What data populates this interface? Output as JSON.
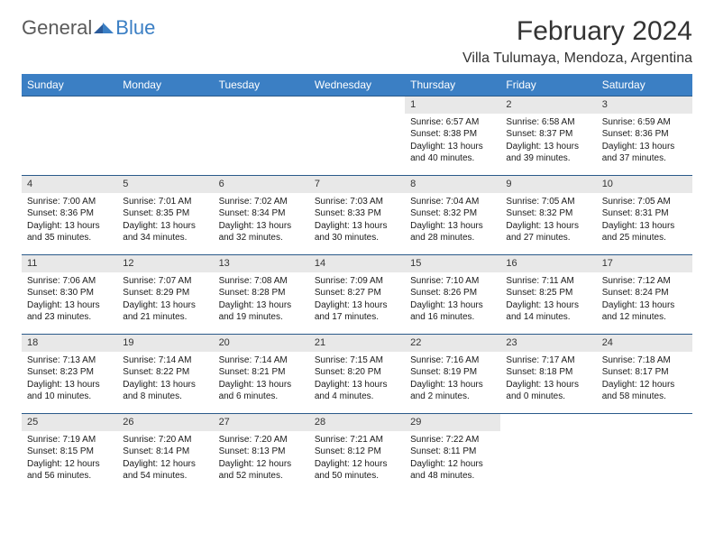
{
  "logo": {
    "general": "General",
    "blue": "Blue"
  },
  "title": "February 2024",
  "location": "Villa Tulumaya, Mendoza, Argentina",
  "colors": {
    "header_bg": "#3b7fc4",
    "header_text": "#ffffff",
    "daynum_bg": "#e8e8e8",
    "divider": "#2a5a8a",
    "logo_gray": "#5a5a5a",
    "logo_blue": "#3b7fc4",
    "body_text": "#1a1a1a"
  },
  "weekdays": [
    "Sunday",
    "Monday",
    "Tuesday",
    "Wednesday",
    "Thursday",
    "Friday",
    "Saturday"
  ],
  "weeks": [
    [
      null,
      null,
      null,
      null,
      {
        "n": "1",
        "sr": "6:57 AM",
        "ss": "8:38 PM",
        "dl": "13 hours and 40 minutes."
      },
      {
        "n": "2",
        "sr": "6:58 AM",
        "ss": "8:37 PM",
        "dl": "13 hours and 39 minutes."
      },
      {
        "n": "3",
        "sr": "6:59 AM",
        "ss": "8:36 PM",
        "dl": "13 hours and 37 minutes."
      }
    ],
    [
      {
        "n": "4",
        "sr": "7:00 AM",
        "ss": "8:36 PM",
        "dl": "13 hours and 35 minutes."
      },
      {
        "n": "5",
        "sr": "7:01 AM",
        "ss": "8:35 PM",
        "dl": "13 hours and 34 minutes."
      },
      {
        "n": "6",
        "sr": "7:02 AM",
        "ss": "8:34 PM",
        "dl": "13 hours and 32 minutes."
      },
      {
        "n": "7",
        "sr": "7:03 AM",
        "ss": "8:33 PM",
        "dl": "13 hours and 30 minutes."
      },
      {
        "n": "8",
        "sr": "7:04 AM",
        "ss": "8:32 PM",
        "dl": "13 hours and 28 minutes."
      },
      {
        "n": "9",
        "sr": "7:05 AM",
        "ss": "8:32 PM",
        "dl": "13 hours and 27 minutes."
      },
      {
        "n": "10",
        "sr": "7:05 AM",
        "ss": "8:31 PM",
        "dl": "13 hours and 25 minutes."
      }
    ],
    [
      {
        "n": "11",
        "sr": "7:06 AM",
        "ss": "8:30 PM",
        "dl": "13 hours and 23 minutes."
      },
      {
        "n": "12",
        "sr": "7:07 AM",
        "ss": "8:29 PM",
        "dl": "13 hours and 21 minutes."
      },
      {
        "n": "13",
        "sr": "7:08 AM",
        "ss": "8:28 PM",
        "dl": "13 hours and 19 minutes."
      },
      {
        "n": "14",
        "sr": "7:09 AM",
        "ss": "8:27 PM",
        "dl": "13 hours and 17 minutes."
      },
      {
        "n": "15",
        "sr": "7:10 AM",
        "ss": "8:26 PM",
        "dl": "13 hours and 16 minutes."
      },
      {
        "n": "16",
        "sr": "7:11 AM",
        "ss": "8:25 PM",
        "dl": "13 hours and 14 minutes."
      },
      {
        "n": "17",
        "sr": "7:12 AM",
        "ss": "8:24 PM",
        "dl": "13 hours and 12 minutes."
      }
    ],
    [
      {
        "n": "18",
        "sr": "7:13 AM",
        "ss": "8:23 PM",
        "dl": "13 hours and 10 minutes."
      },
      {
        "n": "19",
        "sr": "7:14 AM",
        "ss": "8:22 PM",
        "dl": "13 hours and 8 minutes."
      },
      {
        "n": "20",
        "sr": "7:14 AM",
        "ss": "8:21 PM",
        "dl": "13 hours and 6 minutes."
      },
      {
        "n": "21",
        "sr": "7:15 AM",
        "ss": "8:20 PM",
        "dl": "13 hours and 4 minutes."
      },
      {
        "n": "22",
        "sr": "7:16 AM",
        "ss": "8:19 PM",
        "dl": "13 hours and 2 minutes."
      },
      {
        "n": "23",
        "sr": "7:17 AM",
        "ss": "8:18 PM",
        "dl": "13 hours and 0 minutes."
      },
      {
        "n": "24",
        "sr": "7:18 AM",
        "ss": "8:17 PM",
        "dl": "12 hours and 58 minutes."
      }
    ],
    [
      {
        "n": "25",
        "sr": "7:19 AM",
        "ss": "8:15 PM",
        "dl": "12 hours and 56 minutes."
      },
      {
        "n": "26",
        "sr": "7:20 AM",
        "ss": "8:14 PM",
        "dl": "12 hours and 54 minutes."
      },
      {
        "n": "27",
        "sr": "7:20 AM",
        "ss": "8:13 PM",
        "dl": "12 hours and 52 minutes."
      },
      {
        "n": "28",
        "sr": "7:21 AM",
        "ss": "8:12 PM",
        "dl": "12 hours and 50 minutes."
      },
      {
        "n": "29",
        "sr": "7:22 AM",
        "ss": "8:11 PM",
        "dl": "12 hours and 48 minutes."
      },
      null,
      null
    ]
  ],
  "labels": {
    "sunrise": "Sunrise: ",
    "sunset": "Sunset: ",
    "daylight": "Daylight: "
  }
}
